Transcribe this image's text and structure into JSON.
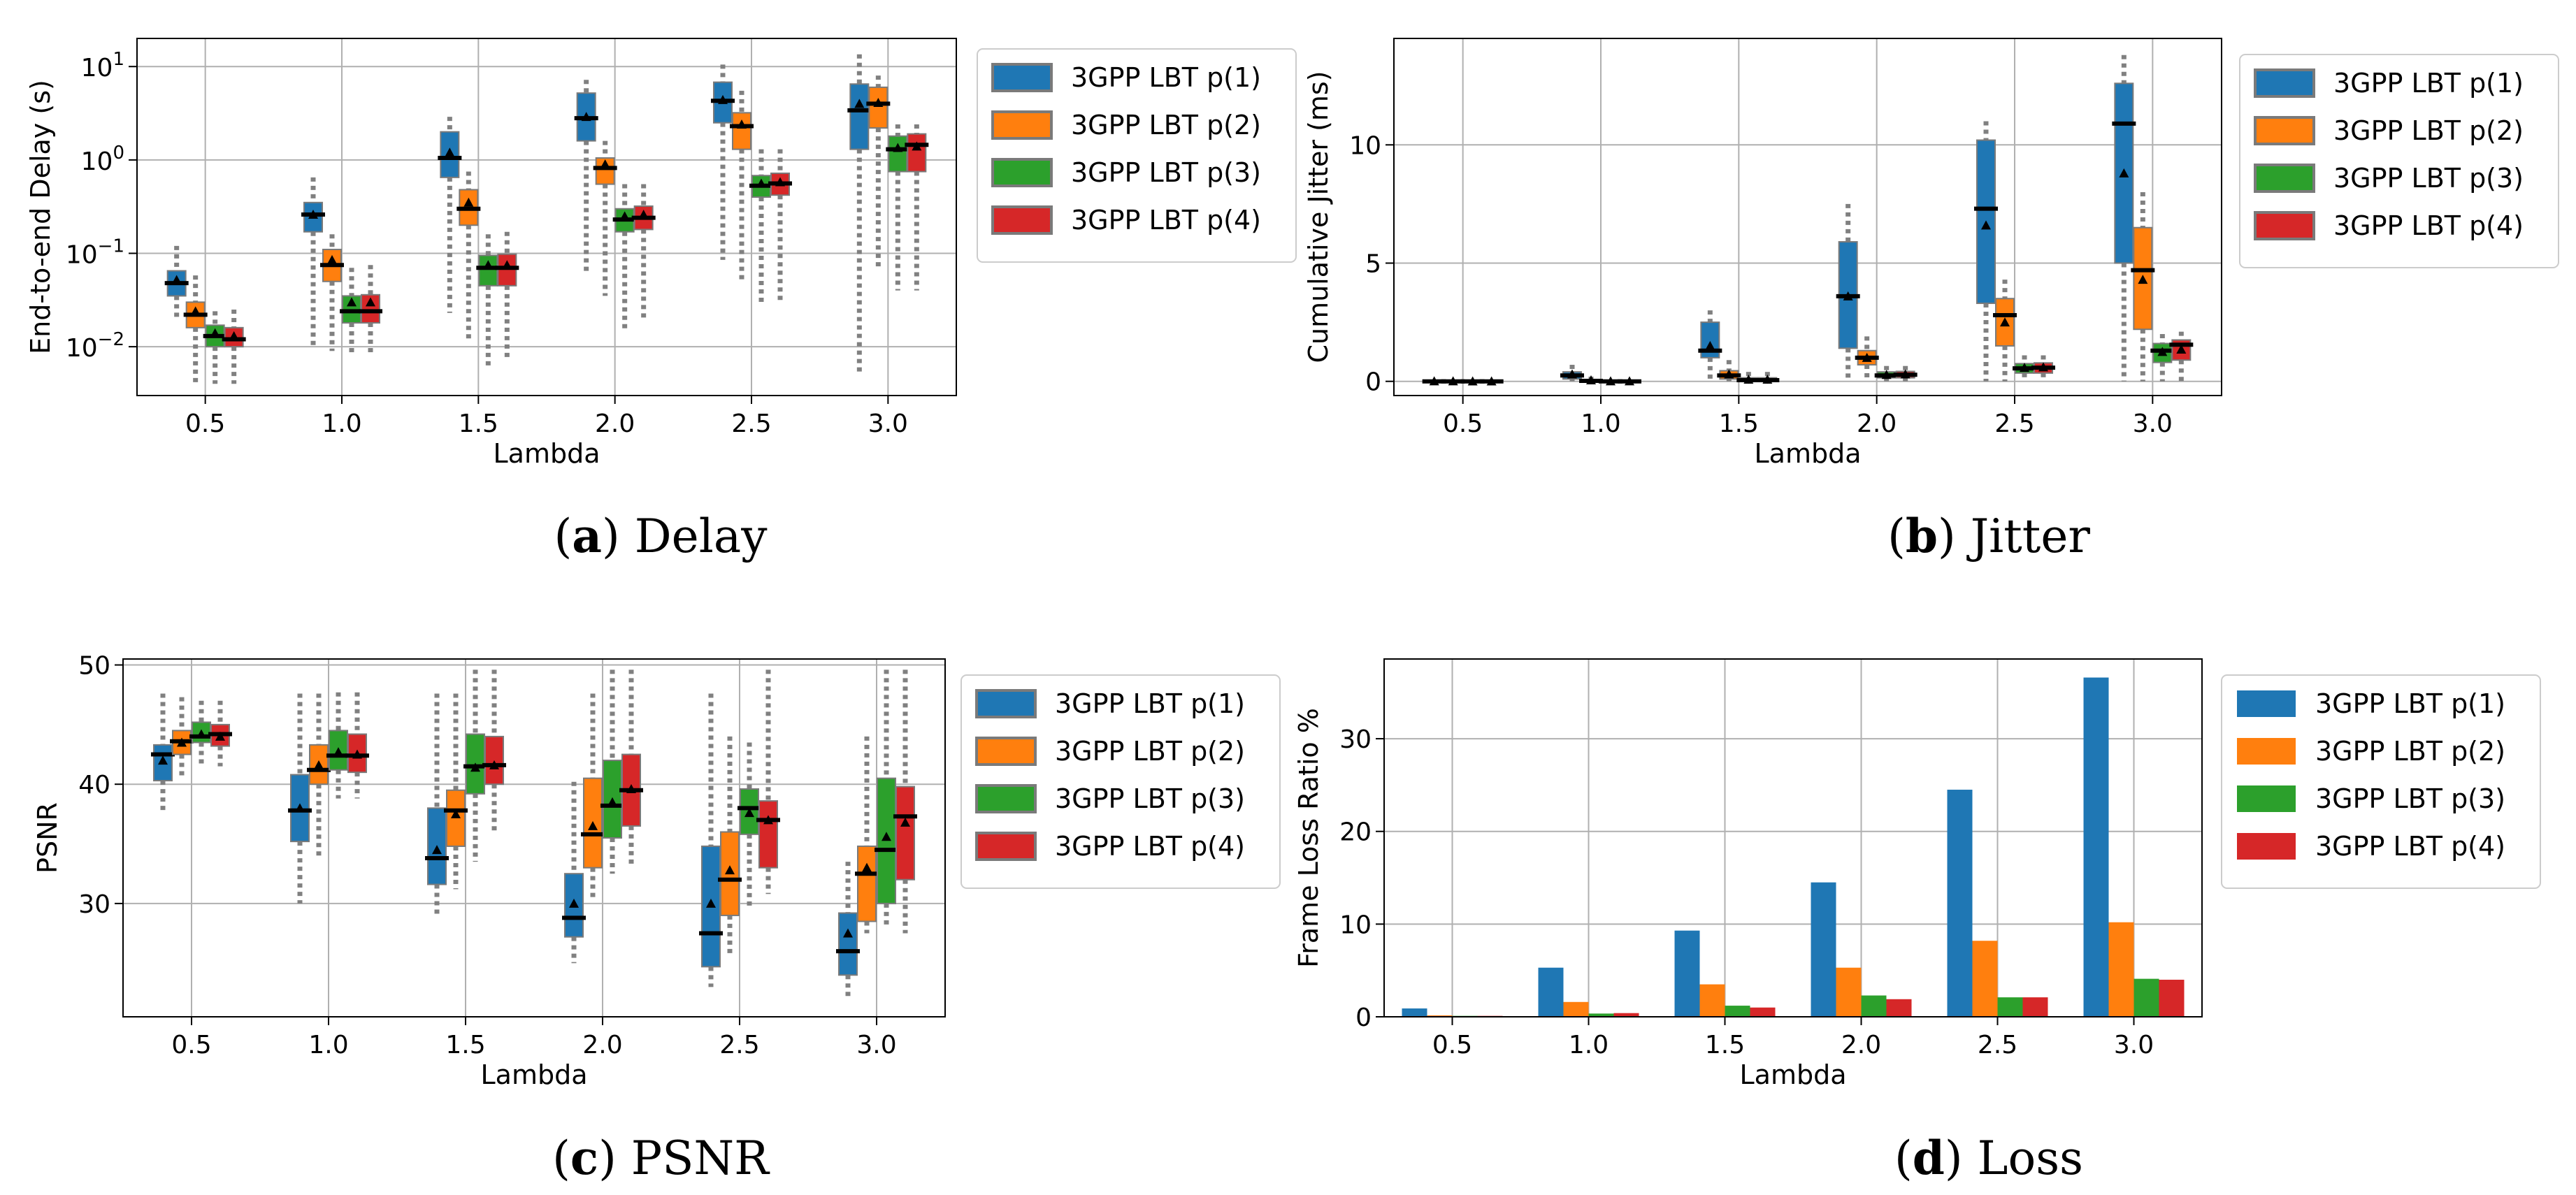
{
  "colors": {
    "p1": "#1f77b4",
    "p2": "#ff7f0e",
    "p3": "#2ca02c",
    "p4": "#d62728",
    "grid": "#b0b0b0",
    "whisker": "#808080"
  },
  "captions": [
    {
      "letter": "a",
      "text": "Delay"
    },
    {
      "letter": "b",
      "text": "Jitter"
    },
    {
      "letter": "c",
      "text": "PSNR"
    },
    {
      "letter": "d",
      "text": "Loss"
    }
  ],
  "chart_data": [
    {
      "type": "box",
      "xlabel": "Lambda",
      "ylabel": "End-to-end Delay (s)",
      "yscale": "log",
      "ylim": [
        0.003,
        20
      ],
      "categories": [
        "0.5",
        "1.0",
        "1.5",
        "2.0",
        "2.5",
        "3.0"
      ],
      "ytick_labels": [
        {
          "value": 0.01,
          "base": "10",
          "exp": "−2"
        },
        {
          "value": 0.1,
          "base": "10",
          "exp": "−1"
        },
        {
          "value": 1,
          "base": "10",
          "exp": "0"
        },
        {
          "value": 10,
          "base": "10",
          "exp": "1"
        }
      ],
      "legend": {
        "position": "outside right",
        "labels": [
          "3GPP LBT p(1)",
          "3GPP LBT p(2)",
          "3GPP LBT p(3)",
          "3GPP LBT p(4)"
        ]
      },
      "series": [
        {
          "name": "3GPP LBT p(1)",
          "boxes": [
            {
              "whislo": 0.02,
              "q1": 0.035,
              "med": 0.048,
              "q3": 0.065,
              "whishi": 0.12,
              "mean": 0.052
            },
            {
              "whislo": 0.01,
              "q1": 0.17,
              "med": 0.26,
              "q3": 0.35,
              "whishi": 0.65,
              "mean": 0.26
            },
            {
              "whislo": 0.023,
              "q1": 0.65,
              "med": 1.05,
              "q3": 2.0,
              "whishi": 2.9,
              "mean": 1.2
            },
            {
              "whislo": 0.06,
              "q1": 1.6,
              "med": 2.8,
              "q3": 5.2,
              "whishi": 7.2,
              "mean": 2.9
            },
            {
              "whislo": 0.085,
              "q1": 2.5,
              "med": 4.3,
              "q3": 6.8,
              "whishi": 10.5,
              "mean": 4.4
            },
            {
              "whislo": 0.005,
              "q1": 1.3,
              "med": 3.4,
              "q3": 6.5,
              "whishi": 13.5,
              "mean": 4.0
            }
          ]
        },
        {
          "name": "3GPP LBT p(2)",
          "boxes": [
            {
              "whislo": 0.004,
              "q1": 0.016,
              "med": 0.022,
              "q3": 0.03,
              "whishi": 0.058,
              "mean": 0.024
            },
            {
              "whislo": 0.009,
              "q1": 0.05,
              "med": 0.075,
              "q3": 0.11,
              "whishi": 0.16,
              "mean": 0.085
            },
            {
              "whislo": 0.012,
              "q1": 0.2,
              "med": 0.3,
              "q3": 0.48,
              "whishi": 0.75,
              "mean": 0.35
            },
            {
              "whislo": 0.035,
              "q1": 0.55,
              "med": 0.82,
              "q3": 1.05,
              "whishi": 1.6,
              "mean": 0.9
            },
            {
              "whislo": 0.05,
              "q1": 1.3,
              "med": 2.3,
              "q3": 3.2,
              "whishi": 5.5,
              "mean": 2.4
            },
            {
              "whislo": 0.07,
              "q1": 2.2,
              "med": 4.0,
              "q3": 6.0,
              "whishi": 8.0,
              "mean": 4.1
            }
          ]
        },
        {
          "name": "3GPP LBT p(3)",
          "boxes": [
            {
              "whislo": 0.004,
              "q1": 0.01,
              "med": 0.013,
              "q3": 0.017,
              "whishi": 0.024,
              "mean": 0.014
            },
            {
              "whislo": 0.008,
              "q1": 0.018,
              "med": 0.024,
              "q3": 0.035,
              "whishi": 0.07,
              "mean": 0.03
            },
            {
              "whislo": 0.006,
              "q1": 0.045,
              "med": 0.07,
              "q3": 0.095,
              "whishi": 0.16,
              "mean": 0.075
            },
            {
              "whislo": 0.015,
              "q1": 0.17,
              "med": 0.23,
              "q3": 0.3,
              "whishi": 0.55,
              "mean": 0.25
            },
            {
              "whislo": 0.03,
              "q1": 0.4,
              "med": 0.53,
              "q3": 0.68,
              "whishi": 1.3,
              "mean": 0.56
            },
            {
              "whislo": 0.04,
              "q1": 0.75,
              "med": 1.3,
              "q3": 1.8,
              "whishi": 2.4,
              "mean": 1.35
            }
          ]
        },
        {
          "name": "3GPP LBT p(4)",
          "boxes": [
            {
              "whislo": 0.004,
              "q1": 0.01,
              "med": 0.012,
              "q3": 0.016,
              "whishi": 0.025,
              "mean": 0.013
            },
            {
              "whislo": 0.008,
              "q1": 0.018,
              "med": 0.024,
              "q3": 0.036,
              "whishi": 0.075,
              "mean": 0.03
            },
            {
              "whislo": 0.007,
              "q1": 0.045,
              "med": 0.07,
              "q3": 0.098,
              "whishi": 0.17,
              "mean": 0.075
            },
            {
              "whislo": 0.02,
              "q1": 0.18,
              "med": 0.24,
              "q3": 0.32,
              "whishi": 0.55,
              "mean": 0.26
            },
            {
              "whislo": 0.03,
              "q1": 0.42,
              "med": 0.56,
              "q3": 0.72,
              "whishi": 1.3,
              "mean": 0.58
            },
            {
              "whislo": 0.04,
              "q1": 0.75,
              "med": 1.45,
              "q3": 1.9,
              "whishi": 2.4,
              "mean": 1.4
            }
          ]
        }
      ]
    },
    {
      "type": "box",
      "xlabel": "Lambda",
      "ylabel": "Cumulative Jitter (ms)",
      "yscale": "linear",
      "ylim": [
        -0.6,
        14.5
      ],
      "categories": [
        "0.5",
        "1.0",
        "1.5",
        "2.0",
        "2.5",
        "3.0"
      ],
      "ytick_labels": [
        {
          "value": 0,
          "text": "0"
        },
        {
          "value": 5,
          "text": "5"
        },
        {
          "value": 10,
          "text": "10"
        }
      ],
      "legend": {
        "position": "outside right",
        "labels": [
          "3GPP LBT p(1)",
          "3GPP LBT p(2)",
          "3GPP LBT p(3)",
          "3GPP LBT p(4)"
        ]
      },
      "series": [
        {
          "name": "3GPP LBT p(1)",
          "boxes": [
            {
              "whislo": 0,
              "q1": 0,
              "med": 0,
              "q3": 0.02,
              "whishi": 0.05,
              "mean": 0.01
            },
            {
              "whislo": 0,
              "q1": 0.1,
              "med": 0.25,
              "q3": 0.4,
              "whishi": 0.7,
              "mean": 0.3
            },
            {
              "whislo": 0,
              "q1": 1.0,
              "med": 1.3,
              "q3": 2.5,
              "whishi": 3.0,
              "mean": 1.5
            },
            {
              "whislo": 0,
              "q1": 1.4,
              "med": 3.6,
              "q3": 5.9,
              "whishi": 7.5,
              "mean": 3.6
            },
            {
              "whislo": 0,
              "q1": 3.3,
              "med": 7.3,
              "q3": 10.2,
              "whishi": 11.0,
              "mean": 6.6
            },
            {
              "whislo": 0,
              "q1": 5.0,
              "med": 10.9,
              "q3": 12.6,
              "whishi": 13.8,
              "mean": 8.8
            }
          ]
        },
        {
          "name": "3GPP LBT p(2)",
          "boxes": [
            {
              "whislo": 0,
              "q1": 0,
              "med": 0,
              "q3": 0.01,
              "whishi": 0.03,
              "mean": 0.01
            },
            {
              "whislo": 0,
              "q1": 0,
              "med": 0.02,
              "q3": 0.08,
              "whishi": 0.2,
              "mean": 0.05
            },
            {
              "whislo": 0,
              "q1": 0.1,
              "med": 0.25,
              "q3": 0.45,
              "whishi": 0.9,
              "mean": 0.3
            },
            {
              "whislo": 0,
              "q1": 0.7,
              "med": 1.0,
              "q3": 1.3,
              "whishi": 1.9,
              "mean": 1.0
            },
            {
              "whislo": 0,
              "q1": 1.5,
              "med": 2.8,
              "q3": 3.5,
              "whishi": 4.3,
              "mean": 2.5
            },
            {
              "whislo": 0,
              "q1": 2.2,
              "med": 4.7,
              "q3": 6.5,
              "whishi": 8.0,
              "mean": 4.3
            }
          ]
        },
        {
          "name": "3GPP LBT p(3)",
          "boxes": [
            {
              "whislo": 0,
              "q1": 0,
              "med": 0,
              "q3": 0.01,
              "whishi": 0.02,
              "mean": 0.005
            },
            {
              "whislo": 0,
              "q1": 0,
              "med": 0,
              "q3": 0.02,
              "whishi": 0.05,
              "mean": 0.01
            },
            {
              "whislo": 0,
              "q1": 0,
              "med": 0.05,
              "q3": 0.15,
              "whishi": 0.4,
              "mean": 0.08
            },
            {
              "whislo": 0,
              "q1": 0.15,
              "med": 0.25,
              "q3": 0.4,
              "whishi": 0.65,
              "mean": 0.28
            },
            {
              "whislo": 0,
              "q1": 0.35,
              "med": 0.55,
              "q3": 0.75,
              "whishi": 1.1,
              "mean": 0.58
            },
            {
              "whislo": 0,
              "q1": 0.8,
              "med": 1.3,
              "q3": 1.6,
              "whishi": 2.0,
              "mean": 1.25
            }
          ]
        },
        {
          "name": "3GPP LBT p(4)",
          "boxes": [
            {
              "whislo": 0,
              "q1": 0,
              "med": 0,
              "q3": 0.01,
              "whishi": 0.02,
              "mean": 0.005
            },
            {
              "whislo": 0,
              "q1": 0,
              "med": 0,
              "q3": 0.02,
              "whishi": 0.05,
              "mean": 0.01
            },
            {
              "whislo": 0,
              "q1": 0,
              "med": 0.05,
              "q3": 0.15,
              "whishi": 0.4,
              "mean": 0.08
            },
            {
              "whislo": 0,
              "q1": 0.15,
              "med": 0.28,
              "q3": 0.42,
              "whishi": 0.65,
              "mean": 0.3
            },
            {
              "whislo": 0,
              "q1": 0.35,
              "med": 0.58,
              "q3": 0.78,
              "whishi": 1.1,
              "mean": 0.6
            },
            {
              "whislo": 0,
              "q1": 0.9,
              "med": 1.55,
              "q3": 1.75,
              "whishi": 2.1,
              "mean": 1.35
            }
          ]
        }
      ]
    },
    {
      "type": "box",
      "xlabel": "Lambda",
      "ylabel": "PSNR",
      "yscale": "linear",
      "ylim": [
        20.5,
        50.5
      ],
      "categories": [
        "0.5",
        "1.0",
        "1.5",
        "2.0",
        "2.5",
        "3.0"
      ],
      "ytick_labels": [
        {
          "value": 30,
          "text": "30"
        },
        {
          "value": 40,
          "text": "40"
        },
        {
          "value": 50,
          "text": "50"
        }
      ],
      "legend": {
        "position": "outside right",
        "labels": [
          "3GPP LBT p(1)",
          "3GPP LBT p(2)",
          "3GPP LBT p(3)",
          "3GPP LBT p(4)"
        ]
      },
      "series": [
        {
          "name": "3GPP LBT p(1)",
          "boxes": [
            {
              "whislo": 37.8,
              "q1": 40.3,
              "med": 42.5,
              "q3": 43.3,
              "whishi": 47.6,
              "mean": 42.0
            },
            {
              "whislo": 30.0,
              "q1": 35.2,
              "med": 37.8,
              "q3": 40.8,
              "whishi": 47.6,
              "mean": 38.0
            },
            {
              "whislo": 28.8,
              "q1": 31.6,
              "med": 33.8,
              "q3": 38.0,
              "whishi": 47.6,
              "mean": 34.5
            },
            {
              "whislo": 25.0,
              "q1": 27.2,
              "med": 28.8,
              "q3": 32.5,
              "whishi": 40.2,
              "mean": 30.0
            },
            {
              "whislo": 23.0,
              "q1": 24.7,
              "med": 27.5,
              "q3": 34.8,
              "whishi": 47.6,
              "mean": 30.0
            },
            {
              "whislo": 22.0,
              "q1": 24.0,
              "med": 26.0,
              "q3": 29.2,
              "whishi": 33.5,
              "mean": 27.5
            }
          ]
        },
        {
          "name": "3GPP LBT p(2)",
          "boxes": [
            {
              "whislo": 40.5,
              "q1": 42.5,
              "med": 43.6,
              "q3": 44.5,
              "whishi": 47.3,
              "mean": 43.5
            },
            {
              "whislo": 33.8,
              "q1": 40.0,
              "med": 41.2,
              "q3": 43.3,
              "whishi": 47.6,
              "mean": 41.6
            },
            {
              "whislo": 31.2,
              "q1": 34.8,
              "med": 37.8,
              "q3": 39.5,
              "whishi": 47.6,
              "mean": 37.5
            },
            {
              "whislo": 30.5,
              "q1": 33.0,
              "med": 35.8,
              "q3": 40.5,
              "whishi": 47.6,
              "mean": 36.5
            },
            {
              "whislo": 25.5,
              "q1": 29.0,
              "med": 32.0,
              "q3": 36.0,
              "whishi": 44.0,
              "mean": 32.8
            },
            {
              "whislo": 27.5,
              "q1": 28.5,
              "med": 32.5,
              "q3": 34.8,
              "whishi": 44.0,
              "mean": 33.0
            }
          ]
        },
        {
          "name": "3GPP LBT p(3)",
          "boxes": [
            {
              "whislo": 41.5,
              "q1": 43.5,
              "med": 44.0,
              "q3": 45.2,
              "whishi": 47.0,
              "mean": 44.2
            },
            {
              "whislo": 38.8,
              "q1": 41.2,
              "med": 42.4,
              "q3": 44.5,
              "whishi": 47.7,
              "mean": 42.7
            },
            {
              "whislo": 33.5,
              "q1": 39.2,
              "med": 41.5,
              "q3": 44.2,
              "whishi": 49.6,
              "mean": 41.4
            },
            {
              "whislo": 32.5,
              "q1": 35.5,
              "med": 38.2,
              "q3": 42.0,
              "whishi": 49.6,
              "mean": 38.5
            },
            {
              "whislo": 29.5,
              "q1": 35.8,
              "med": 38.0,
              "q3": 39.6,
              "whishi": 43.5,
              "mean": 37.6
            },
            {
              "whislo": 28.0,
              "q1": 30.0,
              "med": 34.5,
              "q3": 40.5,
              "whishi": 49.6,
              "mean": 35.6
            }
          ]
        },
        {
          "name": "3GPP LBT p(4)",
          "boxes": [
            {
              "whislo": 41.5,
              "q1": 43.2,
              "med": 44.2,
              "q3": 45.0,
              "whishi": 47.0,
              "mean": 44.0
            },
            {
              "whislo": 38.8,
              "q1": 41.0,
              "med": 42.4,
              "q3": 44.2,
              "whishi": 47.7,
              "mean": 42.5
            },
            {
              "whislo": 36.0,
              "q1": 40.0,
              "med": 41.6,
              "q3": 44.0,
              "whishi": 49.6,
              "mean": 41.6
            },
            {
              "whislo": 33.0,
              "q1": 36.5,
              "med": 39.5,
              "q3": 42.5,
              "whishi": 49.6,
              "mean": 39.6
            },
            {
              "whislo": 30.8,
              "q1": 33.0,
              "med": 37.0,
              "q3": 38.6,
              "whishi": 49.6,
              "mean": 37.0
            },
            {
              "whislo": 27.5,
              "q1": 32.0,
              "med": 37.3,
              "q3": 39.8,
              "whishi": 49.6,
              "mean": 36.8
            }
          ]
        }
      ]
    },
    {
      "type": "bar",
      "xlabel": "Lambda",
      "ylabel": "Frame Loss Ratio %",
      "yscale": "linear",
      "ylim": [
        0,
        38.6
      ],
      "categories": [
        "0.5",
        "1.0",
        "1.5",
        "2.0",
        "2.5",
        "3.0"
      ],
      "ytick_labels": [
        {
          "value": 0,
          "text": "0"
        },
        {
          "value": 10,
          "text": "10"
        },
        {
          "value": 20,
          "text": "20"
        },
        {
          "value": 30,
          "text": "30"
        }
      ],
      "legend": {
        "position": "outside right",
        "labels": [
          "3GPP LBT p(1)",
          "3GPP LBT p(2)",
          "3GPP LBT p(3)",
          "3GPP LBT p(4)"
        ]
      },
      "series": [
        {
          "name": "3GPP LBT p(1)",
          "values": [
            0.9,
            5.3,
            9.3,
            14.5,
            24.5,
            36.6
          ]
        },
        {
          "name": "3GPP LBT p(2)",
          "values": [
            0.15,
            1.6,
            3.5,
            5.3,
            8.2,
            10.2
          ]
        },
        {
          "name": "3GPP LBT p(3)",
          "values": [
            0.1,
            0.35,
            1.2,
            2.3,
            2.1,
            4.1
          ]
        },
        {
          "name": "3GPP LBT p(4)",
          "values": [
            0.1,
            0.4,
            1.0,
            1.9,
            2.1,
            4.0
          ]
        }
      ]
    }
  ]
}
